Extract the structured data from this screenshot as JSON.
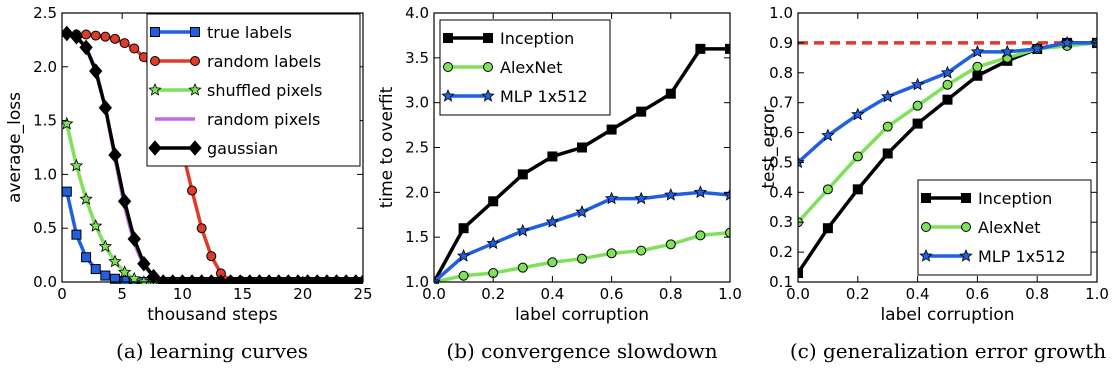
{
  "chart_data": [
    {
      "type": "line",
      "caption": "(a) learning curves",
      "xlabel": "thousand steps",
      "ylabel": "average_loss",
      "xlim": [
        0,
        25
      ],
      "ylim": [
        0,
        2.5
      ],
      "xticks": [
        0,
        5,
        10,
        15,
        20,
        25
      ],
      "yticks": [
        0.0,
        0.5,
        1.0,
        1.5,
        2.0,
        2.5
      ],
      "xtick_labels": [
        "0",
        "5",
        "10",
        "15",
        "20",
        "25"
      ],
      "ytick_labels": [
        "0.0",
        "0.5",
        "1.0",
        "1.5",
        "2.0",
        "2.5"
      ],
      "legend_position": "top-right",
      "series": [
        {
          "name": "true labels",
          "color": "#1f5fe0",
          "marker": "square",
          "x": [
            0.4,
            1.2,
            2.0,
            2.8,
            3.6,
            4.4,
            5.2,
            6.0,
            6.8,
            7.6,
            8.4,
            9.2,
            10.0,
            10.8,
            11.6,
            12.4,
            13.2,
            14.0,
            14.8,
            15.6,
            16.4,
            17.2,
            18.0,
            18.8,
            19.6,
            20.4,
            21.2,
            22.0,
            22.8,
            23.6,
            24.4,
            25.0
          ],
          "y": [
            0.84,
            0.44,
            0.23,
            0.12,
            0.06,
            0.03,
            0.01,
            0.0,
            0.0,
            0.0,
            0.0,
            0.0,
            0.0,
            0.0,
            0.0,
            0.0,
            0.0,
            0.0,
            0.0,
            0.0,
            0.0,
            0.0,
            0.0,
            0.0,
            0.0,
            0.0,
            0.0,
            0.0,
            0.0,
            0.0,
            0.0,
            0.0
          ]
        },
        {
          "name": "random labels",
          "color": "#e03a2a",
          "marker": "circle",
          "x": [
            0.4,
            1.2,
            2.0,
            2.8,
            3.6,
            4.4,
            5.2,
            6.0,
            6.8,
            7.6,
            8.4,
            9.2,
            10.0,
            10.8,
            11.6,
            12.4,
            13.2,
            14.0,
            14.8,
            15.6,
            16.4,
            17.2,
            18.0,
            18.8,
            19.6,
            20.4,
            21.2,
            22.0,
            22.8,
            23.6,
            24.4,
            25.0
          ],
          "y": [
            2.31,
            2.3,
            2.3,
            2.29,
            2.28,
            2.26,
            2.22,
            2.17,
            2.09,
            1.97,
            1.79,
            1.54,
            1.22,
            0.85,
            0.5,
            0.24,
            0.08,
            0.01,
            0.0,
            0.0,
            0.0,
            0.0,
            0.0,
            0.0,
            0.0,
            0.0,
            0.0,
            0.0,
            0.0,
            0.0,
            0.0,
            0.0
          ]
        },
        {
          "name": "shuffled pixels",
          "color": "#7fe05a",
          "marker": "star",
          "x": [
            0.4,
            1.2,
            2.0,
            2.8,
            3.6,
            4.4,
            5.2,
            6.0,
            6.8,
            7.6,
            8.4,
            9.2,
            10.0,
            10.8,
            11.6,
            12.4,
            13.2,
            14.0,
            14.8,
            15.6,
            16.4,
            17.2,
            18.0,
            18.8,
            19.6,
            20.4,
            21.2,
            22.0,
            22.8,
            23.6,
            24.4,
            25.0
          ],
          "y": [
            1.47,
            1.08,
            0.77,
            0.52,
            0.33,
            0.19,
            0.09,
            0.03,
            0.0,
            0.0,
            0.0,
            0.0,
            0.0,
            0.0,
            0.0,
            0.0,
            0.0,
            0.0,
            0.0,
            0.0,
            0.0,
            0.0,
            0.0,
            0.0,
            0.0,
            0.0,
            0.0,
            0.0,
            0.0,
            0.0,
            0.0,
            0.0
          ]
        },
        {
          "name": "random pixels",
          "color": "#c56be0",
          "marker": "none",
          "x": [
            0.4,
            1.2,
            2.0,
            2.8,
            3.6,
            4.4,
            5.2,
            6.0,
            6.8,
            7.6,
            8.4,
            9.2,
            10.0,
            25.0
          ],
          "y": [
            2.3,
            2.27,
            2.18,
            1.98,
            1.62,
            1.15,
            0.7,
            0.36,
            0.15,
            0.05,
            0.01,
            0.0,
            0.0,
            0.0
          ]
        },
        {
          "name": "gaussian",
          "color": "#000000",
          "marker": "diamond",
          "x": [
            0.4,
            1.2,
            2.0,
            2.8,
            3.6,
            4.4,
            5.2,
            6.0,
            6.8,
            7.6,
            8.4,
            9.2,
            10.0,
            10.8,
            11.6,
            12.4,
            13.2,
            14.0,
            14.8,
            15.6,
            16.4,
            17.2,
            18.0,
            18.8,
            19.6,
            20.4,
            21.2,
            22.0,
            22.8,
            23.6,
            24.4,
            25.0
          ],
          "y": [
            2.31,
            2.28,
            2.18,
            1.96,
            1.62,
            1.18,
            0.75,
            0.4,
            0.17,
            0.05,
            0.0,
            0.0,
            0.0,
            0.0,
            0.0,
            0.0,
            0.0,
            0.0,
            0.0,
            0.0,
            0.0,
            0.0,
            0.0,
            0.0,
            0.0,
            0.0,
            0.0,
            0.0,
            0.0,
            0.0,
            0.0,
            0.0
          ]
        }
      ]
    },
    {
      "type": "line",
      "caption": "(b) convergence slowdown",
      "xlabel": "label corruption",
      "ylabel": "time to overfit",
      "xlim": [
        0,
        1
      ],
      "ylim": [
        1.0,
        4.0
      ],
      "xticks": [
        0.0,
        0.2,
        0.4,
        0.6,
        0.8,
        1.0
      ],
      "yticks": [
        1.0,
        1.5,
        2.0,
        2.5,
        3.0,
        3.5,
        4.0
      ],
      "xtick_labels": [
        "0.0",
        "0.2",
        "0.4",
        "0.6",
        "0.8",
        "1.0"
      ],
      "ytick_labels": [
        "1.0",
        "1.5",
        "2.0",
        "2.5",
        "3.0",
        "3.5",
        "4.0"
      ],
      "legend_position": "top-left",
      "series": [
        {
          "name": "Inception",
          "color": "#000000",
          "marker": "square",
          "x": [
            0.0,
            0.1,
            0.2,
            0.3,
            0.4,
            0.5,
            0.6,
            0.7,
            0.8,
            0.9,
            1.0
          ],
          "y": [
            1.0,
            1.6,
            1.9,
            2.2,
            2.4,
            2.5,
            2.7,
            2.9,
            3.1,
            3.6,
            3.6
          ]
        },
        {
          "name": "AlexNet",
          "color": "#7fe05a",
          "marker": "circle",
          "x": [
            0.0,
            0.1,
            0.2,
            0.3,
            0.4,
            0.5,
            0.6,
            0.7,
            0.8,
            0.9,
            1.0
          ],
          "y": [
            1.0,
            1.07,
            1.1,
            1.16,
            1.22,
            1.26,
            1.32,
            1.35,
            1.42,
            1.52,
            1.55
          ]
        },
        {
          "name": "MLP 1x512",
          "color": "#1f5fe0",
          "marker": "star",
          "x": [
            0.0,
            0.1,
            0.2,
            0.3,
            0.4,
            0.5,
            0.6,
            0.7,
            0.8,
            0.9,
            1.0
          ],
          "y": [
            1.0,
            1.29,
            1.43,
            1.57,
            1.67,
            1.78,
            1.93,
            1.93,
            1.97,
            2.0,
            1.97
          ]
        }
      ]
    },
    {
      "type": "line",
      "caption": "(c) generalization error growth",
      "xlabel": "label corruption",
      "ylabel": "test_error",
      "xlim": [
        0,
        1
      ],
      "ylim": [
        0.1,
        1.0
      ],
      "xticks": [
        0.0,
        0.2,
        0.4,
        0.6,
        0.8,
        1.0
      ],
      "yticks": [
        0.1,
        0.2,
        0.3,
        0.4,
        0.5,
        0.6,
        0.7,
        0.8,
        0.9,
        1.0
      ],
      "xtick_labels": [
        "0.0",
        "0.2",
        "0.4",
        "0.6",
        "0.8",
        "1.0"
      ],
      "ytick_labels": [
        "0.1",
        "0.2",
        "0.3",
        "0.4",
        "0.5",
        "0.6",
        "0.7",
        "0.8",
        "0.9",
        "1.0"
      ],
      "legend_position": "bottom-right",
      "reference_line": {
        "y": 0.9,
        "color": "#e03a2a",
        "style": "dashed"
      },
      "series": [
        {
          "name": "Inception",
          "color": "#000000",
          "marker": "square",
          "x": [
            0.0,
            0.1,
            0.2,
            0.3,
            0.4,
            0.5,
            0.6,
            0.7,
            0.8,
            0.9,
            1.0
          ],
          "y": [
            0.13,
            0.28,
            0.41,
            0.53,
            0.63,
            0.71,
            0.79,
            0.84,
            0.88,
            0.9,
            0.9
          ]
        },
        {
          "name": "AlexNet",
          "color": "#7fe05a",
          "marker": "circle",
          "x": [
            0.0,
            0.1,
            0.2,
            0.3,
            0.4,
            0.5,
            0.6,
            0.7,
            0.8,
            0.9,
            1.0
          ],
          "y": [
            0.3,
            0.41,
            0.52,
            0.62,
            0.69,
            0.76,
            0.82,
            0.85,
            0.88,
            0.89,
            0.9
          ]
        },
        {
          "name": "MLP 1x512",
          "color": "#1f5fe0",
          "marker": "star",
          "x": [
            0.0,
            0.1,
            0.2,
            0.3,
            0.4,
            0.5,
            0.6,
            0.7,
            0.8,
            0.9,
            1.0
          ],
          "y": [
            0.5,
            0.59,
            0.66,
            0.72,
            0.76,
            0.8,
            0.87,
            0.87,
            0.88,
            0.9,
            0.9
          ]
        }
      ]
    }
  ]
}
